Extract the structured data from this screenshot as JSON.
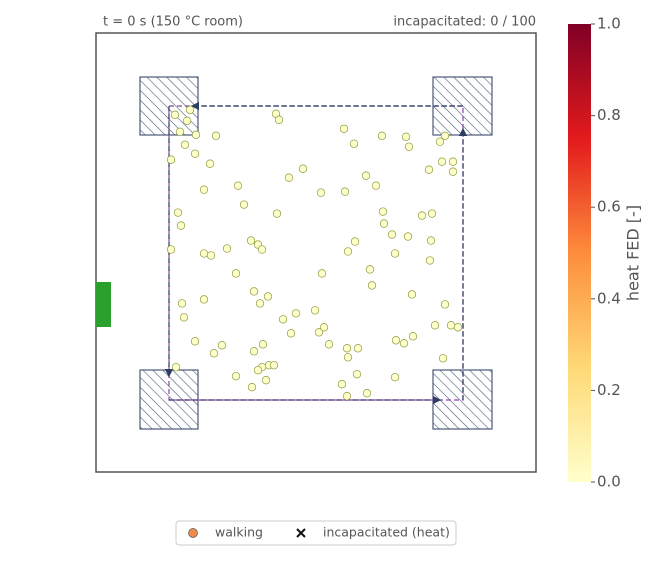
{
  "chart_data": {
    "type": "scatter",
    "title": "t = 0 s   (150 °C room)",
    "subtitle": "incapacitated: 0 / 100",
    "xlim": [
      0,
      440
    ],
    "ylim": [
      0,
      440
    ],
    "colorbar": {
      "label": "heat FED [-]",
      "lim": [
        0,
        1
      ],
      "ticks": [
        {
          "value": 0,
          "label": "0.0"
        },
        {
          "value": 0.2,
          "label": "0.2"
        },
        {
          "value": 0.4,
          "label": "0.4"
        },
        {
          "value": 0.6,
          "label": "0.6"
        },
        {
          "value": 0.8,
          "label": "0.8"
        },
        {
          "value": 1,
          "label": "1.0"
        }
      ],
      "colors": [
        "#ffffcc",
        "#fed976",
        "#fd8d3c",
        "#e31a1c",
        "#800026"
      ]
    },
    "series": [
      {
        "name": "walking",
        "color": "#f08c4a",
        "marker": "o",
        "x": [
          79,
          94,
          91,
          84,
          100,
          89,
          120,
          75,
          99,
          114,
          180,
          183,
          248,
          258,
          286,
          310,
          313,
          349,
          344,
          346,
          357,
          357,
          333,
          270,
          280,
          193,
          207,
          142,
          108,
          225,
          249,
          148,
          82,
          85,
          181,
          287,
          288,
          326,
          336,
          296,
          312,
          335,
          259,
          252,
          75,
          108,
          115,
          131,
          155,
          162,
          166,
          299,
          334,
          274,
          226,
          140,
          276,
          158,
          172,
          164,
          86,
          108,
          316,
          349,
          88,
          187,
          200,
          219,
          228,
          223,
          195,
          339,
          355,
          362,
          99,
          126,
          118,
          167,
          158,
          233,
          251,
          262,
          252,
          300,
          308,
          317,
          347,
          80,
          173,
          178,
          166,
          162,
          261,
          140,
          170,
          156,
          246,
          299,
          271,
          251
        ],
        "y": [
          82,
          77,
          88,
          99,
          102,
          112,
          103,
          127,
          121,
          131,
          81,
          87,
          96,
          111,
          103,
          104,
          114,
          103,
          109,
          129,
          129,
          139,
          137,
          143,
          153,
          145,
          136,
          153,
          157,
          160,
          159,
          172,
          180,
          193,
          181,
          179,
          191,
          183,
          181,
          202,
          204,
          208,
          209,
          219,
          217,
          221,
          223,
          216,
          208,
          212,
          217,
          221,
          228,
          237,
          241,
          241,
          253,
          259,
          264,
          271,
          271,
          267,
          262,
          272,
          285,
          287,
          281,
          278,
          295,
          300,
          301,
          293,
          293,
          295,
          309,
          313,
          321,
          312,
          319,
          312,
          316,
          316,
          325,
          308,
          311,
          304,
          326,
          335,
          333,
          333,
          335,
          338,
          342,
          344,
          348,
          355,
          352,
          345,
          361,
          364
        ]
      },
      {
        "name": "incapacitated (heat)",
        "color": "#111111",
        "marker": "x",
        "x": [],
        "y": []
      }
    ]
  }
}
